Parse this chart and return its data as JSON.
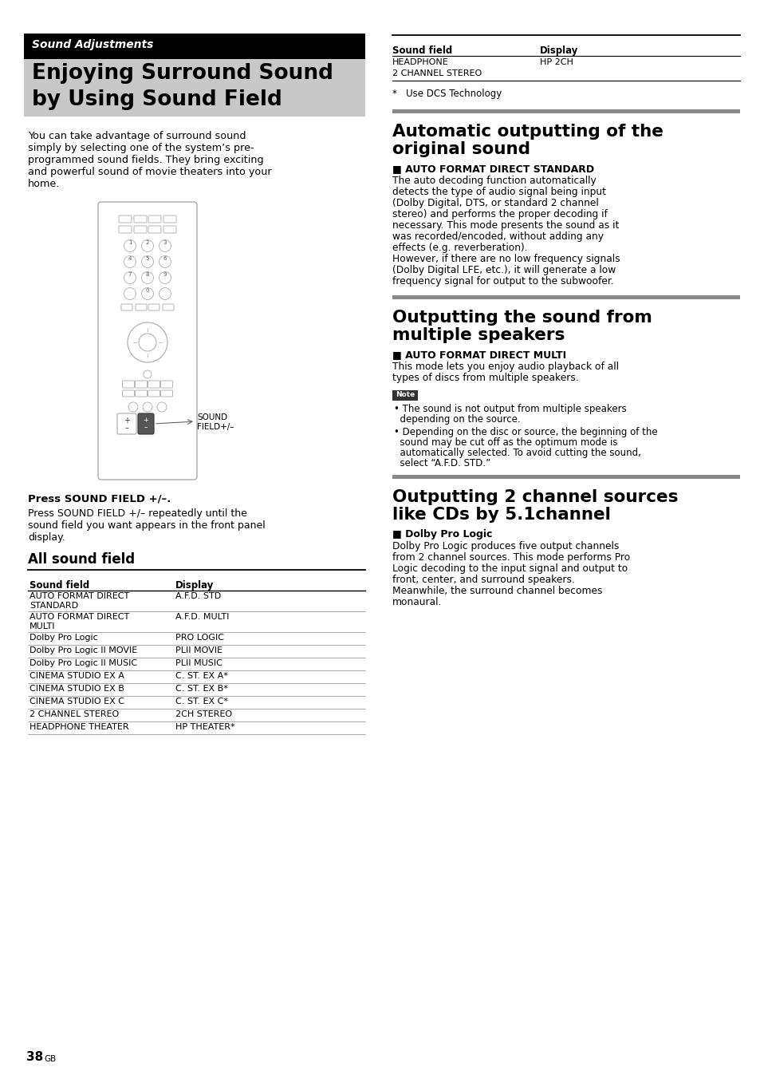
{
  "page_bg": "#ffffff",
  "header_subtitle": "Sound Adjustments",
  "header_title_line1": "Enjoying Surround Sound",
  "header_title_line2": "by Using Sound Field",
  "intro_text_lines": [
    "You can take advantage of surround sound",
    "simply by selecting one of the system’s pre-",
    "programmed sound fields. They bring exciting",
    "and powerful sound of movie theaters into your",
    "home."
  ],
  "press_bold": "Press SOUND FIELD +/–.",
  "press_text_lines": [
    "Press SOUND FIELD +/– repeatedly until the",
    "sound field you want appears in the front panel",
    "display."
  ],
  "all_sound_field_title": "All sound field",
  "table1_headers": [
    "Sound field",
    "Display"
  ],
  "table1_rows": [
    [
      "AUTO FORMAT DIRECT",
      "A.F.D. STD",
      "STANDARD",
      ""
    ],
    [
      "AUTO FORMAT DIRECT",
      "A.F.D. MULTI",
      "MULTI",
      ""
    ],
    [
      "Dolby Pro Logic",
      "PRO LOGIC",
      "",
      ""
    ],
    [
      "Dolby Pro Logic II MOVIE",
      "PLII MOVIE",
      "",
      ""
    ],
    [
      "Dolby Pro Logic II MUSIC",
      "PLII MUSIC",
      "",
      ""
    ],
    [
      "CINEMA STUDIO EX A",
      "C. ST. EX A*",
      "",
      ""
    ],
    [
      "CINEMA STUDIO EX B",
      "C. ST. EX B*",
      "",
      ""
    ],
    [
      "CINEMA STUDIO EX C",
      "C. ST. EX C*",
      "",
      ""
    ],
    [
      "2 CHANNEL STEREO",
      "2CH STEREO",
      "",
      ""
    ],
    [
      "HEADPHONE THEATER",
      "HP THEATER*",
      "",
      ""
    ]
  ],
  "sound_field_label": "SOUND\nFIELD+/–",
  "table2_top_line": true,
  "table2_headers": [
    "Sound field",
    "Display"
  ],
  "table2_row1a": "HEADPHONE",
  "table2_row1b": "HP 2CH",
  "table2_row2a": "2 CHANNEL STEREO",
  "dcs_note": "*   Use DCS Technology",
  "sep_color": "#888888",
  "section2_title1": "Automatic outputting of the",
  "section2_title2": "original sound",
  "section2_sub": "■ AUTO FORMAT DIRECT STANDARD",
  "section2_body": [
    "The auto decoding function automatically",
    "detects the type of audio signal being input",
    "(Dolby Digital, DTS, or standard 2 channel",
    "stereo) and performs the proper decoding if",
    "necessary. This mode presents the sound as it",
    "was recorded/encoded, without adding any",
    "effects (e.g. reverberation).",
    "However, if there are no low frequency signals",
    "(Dolby Digital LFE, etc.), it will generate a low",
    "frequency signal for output to the subwoofer."
  ],
  "section3_title1": "Outputting the sound from",
  "section3_title2": "multiple speakers",
  "section3_sub": "■ AUTO FORMAT DIRECT MULTI",
  "section3_body": [
    "This mode lets you enjoy audio playback of all",
    "types of discs from multiple speakers."
  ],
  "note_label": "Note",
  "note_bullet1": [
    "• The sound is not output from multiple speakers",
    "  depending on the source."
  ],
  "note_bullet2": [
    "• Depending on the disc or source, the beginning of the",
    "  sound may be cut off as the optimum mode is",
    "  automatically selected. To avoid cutting the sound,",
    "  select “A.F.D. STD.”"
  ],
  "section4_title1": "Outputting 2 channel sources",
  "section4_title2": "like CDs by 5.1channel",
  "section4_sub": "■ Dolby Pro Logic",
  "section4_body": [
    "Dolby Pro Logic produces five output channels",
    "from 2 channel sources. This mode performs Pro",
    "Logic decoding to the input signal and output to",
    "front, center, and surround speakers.",
    "Meanwhile, the surround channel becomes",
    "monaural."
  ],
  "page_number_big": "38",
  "page_number_small": "GB"
}
